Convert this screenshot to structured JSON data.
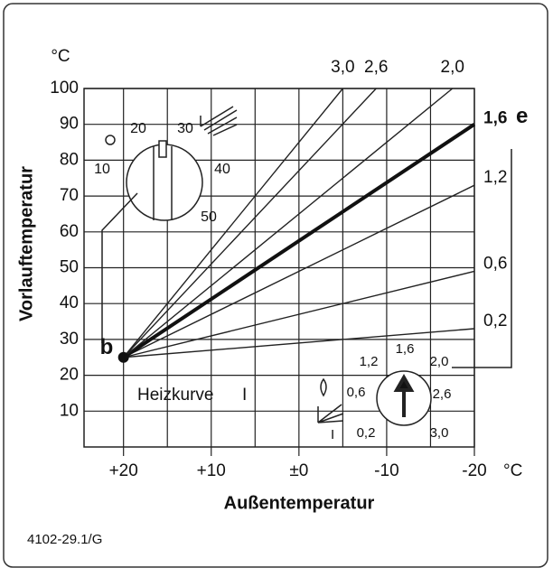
{
  "chart_data": {
    "type": "line",
    "y_unit": "°C",
    "x_unit": "°C",
    "ylabel": "Vorlauftemperatur",
    "xlabel": "Außentemperatur",
    "xlim": [
      24.5,
      -20
    ],
    "ylim": [
      0,
      100
    ],
    "xticks": [
      {
        "value": 20,
        "label": "+20"
      },
      {
        "value": 10,
        "label": "+10"
      },
      {
        "value": 0,
        "label": "±0"
      },
      -10,
      -20
    ],
    "x_minor_grid": [
      15,
      5,
      -5,
      -15
    ],
    "yticks": [
      10,
      20,
      30,
      40,
      50,
      60,
      70,
      80,
      90,
      100
    ],
    "grid": true,
    "series": [
      {
        "name": "0,2",
        "color": "#222",
        "width": 1.4,
        "x": [
          20,
          -20
        ],
        "values": [
          25,
          33
        ]
      },
      {
        "name": "0,6",
        "color": "#222",
        "width": 1.4,
        "x": [
          20,
          -20
        ],
        "values": [
          25,
          49
        ]
      },
      {
        "name": "1,2",
        "color": "#222",
        "width": 1.4,
        "x": [
          20,
          -20
        ],
        "values": [
          25,
          73
        ]
      },
      {
        "name": "1,6",
        "color": "#111",
        "width": 4,
        "x": [
          20,
          -20
        ],
        "values": [
          25,
          90
        ]
      },
      {
        "name": "2,0",
        "color": "#222",
        "width": 1.4,
        "x": [
          20,
          -17.5
        ],
        "values": [
          25,
          100
        ]
      },
      {
        "name": "2,6",
        "color": "#222",
        "width": 1.4,
        "x": [
          20,
          -8.8
        ],
        "values": [
          25,
          100
        ]
      },
      {
        "name": "3,0",
        "color": "#222",
        "width": 1.4,
        "x": [
          20,
          -5
        ],
        "values": [
          25,
          100
        ]
      }
    ],
    "point": {
      "label": "b",
      "x": 20,
      "y": 25
    },
    "selected_label": "e",
    "curve_label": "Heizkurve",
    "curve_numeral": "I",
    "footer": "4102-29.1/G"
  },
  "knobs": {
    "temperature": {
      "labels": [
        "10",
        "20",
        "30",
        "40",
        "50"
      ]
    },
    "curve": {
      "labels": [
        "0,2",
        "0,6",
        "1,2",
        "1,6",
        "2,0",
        "2,6",
        "3,0"
      ],
      "symbol": "I"
    }
  }
}
